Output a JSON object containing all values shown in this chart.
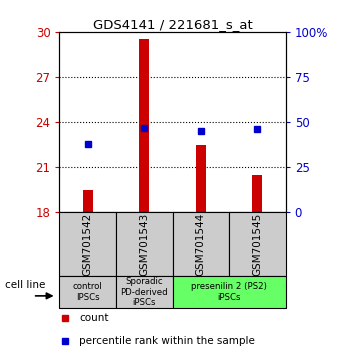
{
  "title": "GDS4141 / 221681_s_at",
  "samples": [
    "GSM701542",
    "GSM701543",
    "GSM701544",
    "GSM701545"
  ],
  "count_values": [
    19.5,
    29.5,
    22.5,
    20.5
  ],
  "percentile_values": [
    38,
    47,
    45,
    46
  ],
  "ylim_left": [
    18,
    30
  ],
  "ylim_right": [
    0,
    100
  ],
  "yticks_left": [
    18,
    21,
    24,
    27,
    30
  ],
  "yticks_right": [
    0,
    25,
    50,
    75,
    100
  ],
  "ytick_labels_right": [
    "0",
    "25",
    "50",
    "75",
    "100%"
  ],
  "bar_color": "#cc0000",
  "dot_color": "#0000cc",
  "bar_bottom": 18,
  "groups": [
    {
      "label": "control\nIPSCs",
      "start": 0,
      "end": 0,
      "color": "#cccccc"
    },
    {
      "label": "Sporadic\nPD-derived\niPSCs",
      "start": 1,
      "end": 1,
      "color": "#cccccc"
    },
    {
      "label": "presenilin 2 (PS2)\niPSCs",
      "start": 2,
      "end": 3,
      "color": "#66ff66"
    }
  ],
  "cell_line_label": "cell line",
  "legend_count_label": "count",
  "legend_percentile_label": "percentile rank within the sample",
  "grid_yticks": [
    21,
    24,
    27
  ],
  "left_tick_color": "#cc0000",
  "right_tick_color": "#0000cc",
  "bar_width": 0.18
}
